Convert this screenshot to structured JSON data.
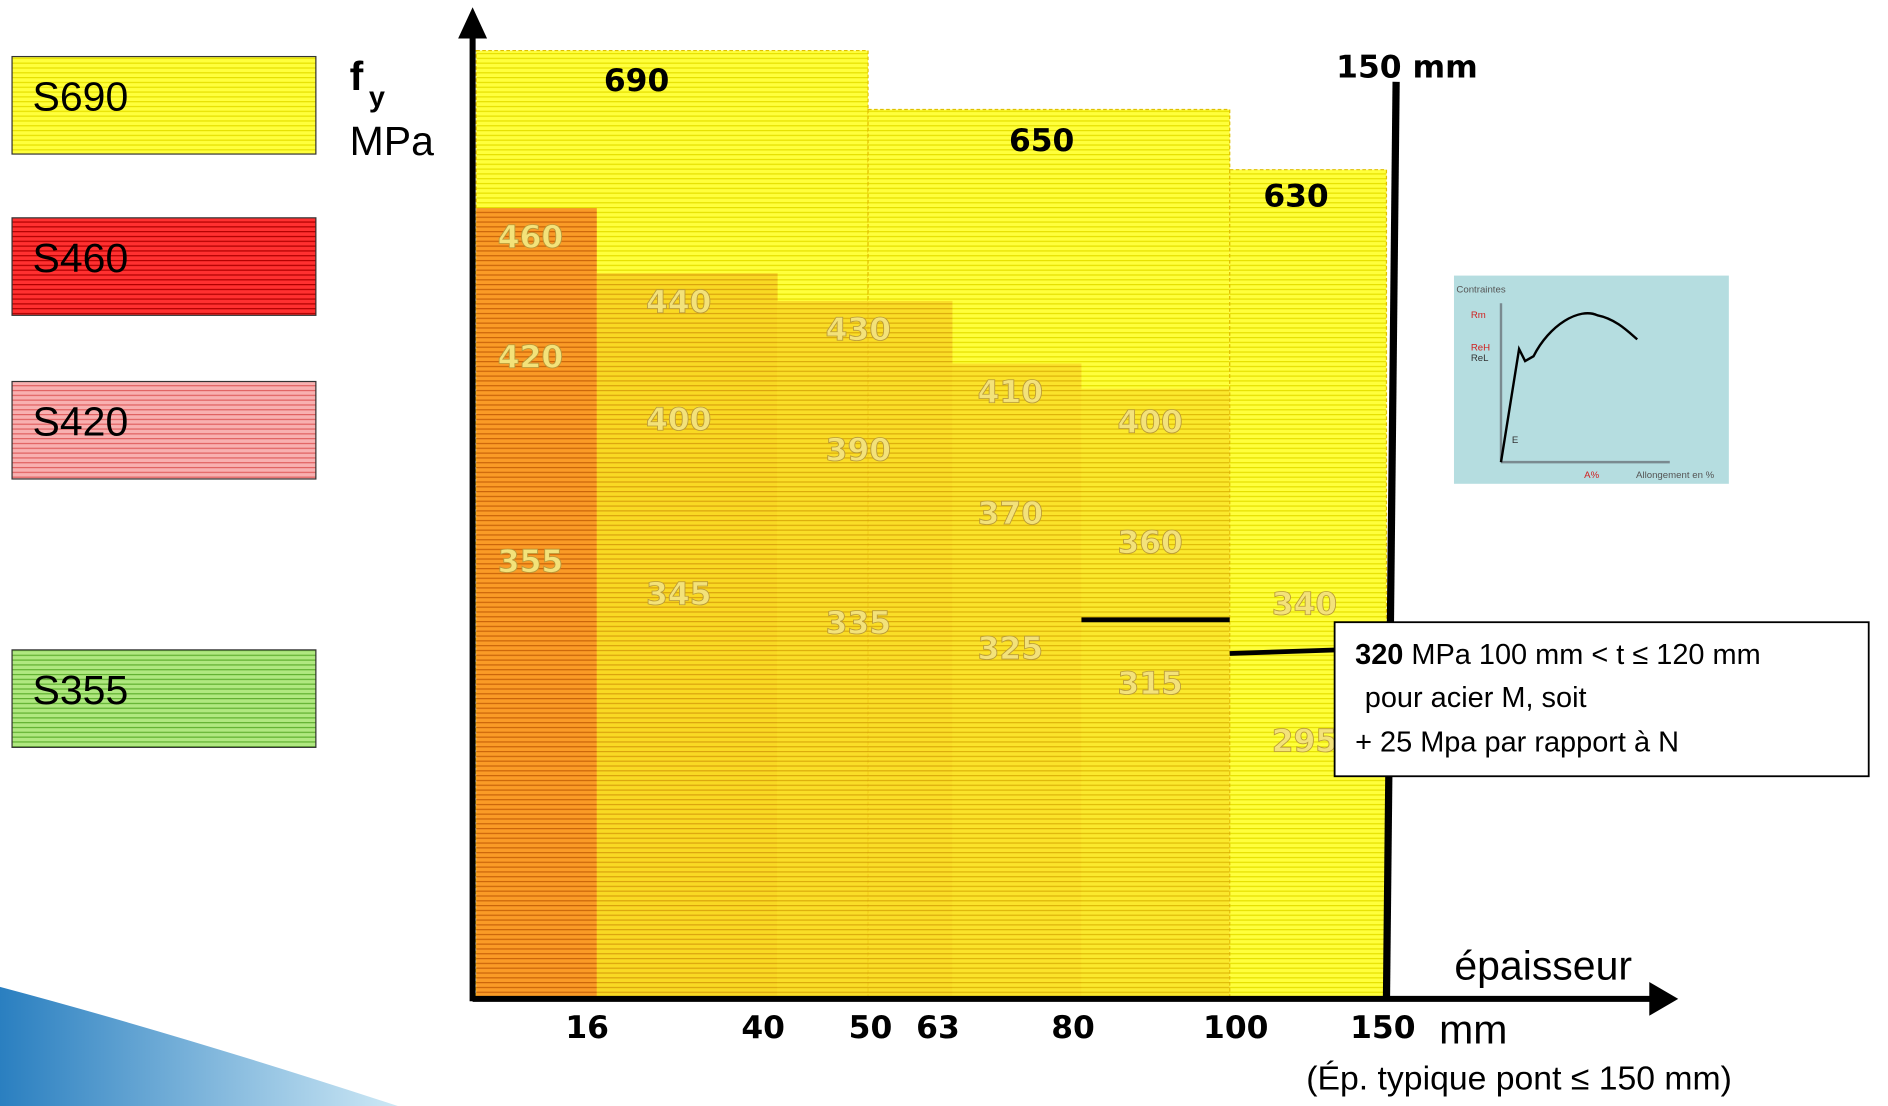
{
  "legend": [
    "S690",
    "S460",
    "S420",
    "S355"
  ],
  "y_axis": {
    "symbol": "f",
    "subscript": "y",
    "unit": "MPa"
  },
  "x_axis": {
    "ticks": [
      "16",
      "40",
      "50",
      "63",
      "80",
      "100",
      "150"
    ],
    "label": "épaisseur",
    "unit": "mm",
    "note": "(Ép. typique pont ≤ 150 mm)"
  },
  "limit_label": "150 mm",
  "s690_values": [
    "690",
    "650",
    "630"
  ],
  "columns": [
    [
      "460",
      "420",
      "355"
    ],
    [
      "440",
      "400",
      "345"
    ],
    [
      "430",
      "390",
      "335"
    ],
    [
      "410",
      "370",
      "325"
    ],
    [
      "400",
      "360",
      "315"
    ],
    [
      "340",
      "295"
    ]
  ],
  "annotation": {
    "value": "320",
    "text": " MPa  100 mm < t ≤ 120 mm",
    "line2": "pour acier M, soit",
    "line3": "+ 25 Mpa par rapport à N"
  },
  "inset": {
    "title": "Contraintes",
    "rm": "Rm",
    "reh": "ReH",
    "rel": "ReL",
    "e": "E",
    "a": "A%",
    "x_label": "Allongement en %"
  }
}
